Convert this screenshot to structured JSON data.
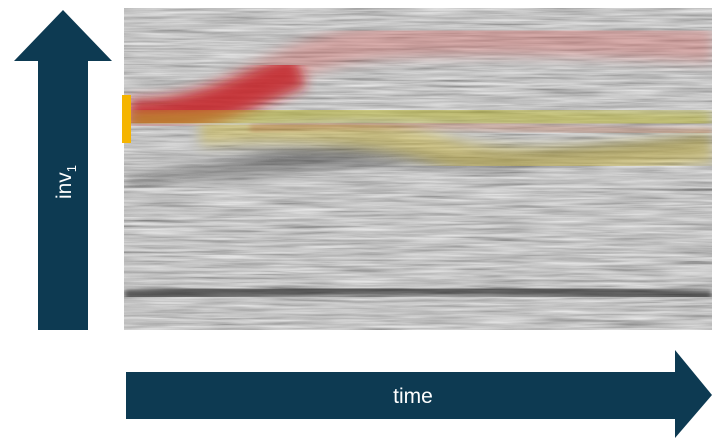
{
  "axes": {
    "y_label": "inv",
    "y_label_subscript": "1",
    "x_label": "time"
  }
}
